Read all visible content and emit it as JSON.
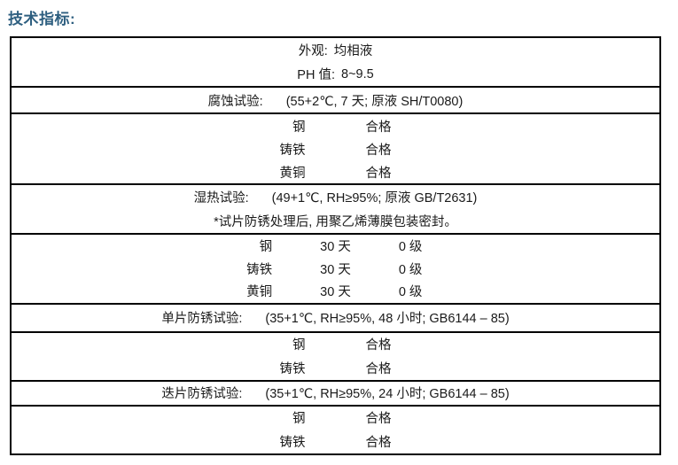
{
  "page": {
    "title": "技术指标:"
  },
  "colors": {
    "title": "#2E5F80",
    "border": "#000000",
    "text": "#1A1A1A",
    "background": "#FFFFFF"
  },
  "table": {
    "sections": [
      {
        "rows": [
          {
            "type": "pair",
            "cells": [
              "外观:",
              "均相液"
            ]
          },
          {
            "type": "pair",
            "cells": [
              "PH 值:",
              "8~9.5"
            ]
          }
        ]
      },
      {
        "rows": [
          {
            "type": "test",
            "cells": [
              "腐蚀试验:",
              "(55+2℃, 7 天; 原液 SH/T0080)"
            ]
          }
        ]
      },
      {
        "rows": [
          {
            "type": "metal2",
            "cells": [
              "钢",
              "合格"
            ]
          },
          {
            "type": "metal2",
            "cells": [
              "铸铁",
              "合格"
            ]
          },
          {
            "type": "metal2",
            "cells": [
              "黄铜",
              "合格"
            ]
          }
        ]
      },
      {
        "rows": [
          {
            "type": "test",
            "cells": [
              "湿热试验:",
              "(49+1℃, RH≥95%; 原液 GB/T2631)"
            ]
          },
          {
            "type": "note",
            "cells": [
              "*试片防锈处理后, 用聚乙烯薄膜包装密封。"
            ]
          }
        ]
      },
      {
        "rows": [
          {
            "type": "metal3",
            "cells": [
              "钢",
              "30 天",
              "0 级"
            ]
          },
          {
            "type": "metal3",
            "cells": [
              "铸铁",
              "30 天",
              "0 级"
            ]
          },
          {
            "type": "metal3",
            "cells": [
              "黄铜",
              "30 天",
              "0 级"
            ]
          }
        ]
      },
      {
        "rows": [
          {
            "type": "test",
            "cells": [
              "单片防锈试验:",
              "(35+1℃, RH≥95%, 48 小时; GB6144 – 85)"
            ]
          }
        ]
      },
      {
        "rows": [
          {
            "type": "metal2",
            "cells": [
              "钢",
              "合格"
            ]
          },
          {
            "type": "metal2",
            "cells": [
              "铸铁",
              "合格"
            ]
          }
        ]
      },
      {
        "rows": [
          {
            "type": "test",
            "cells": [
              "迭片防锈试验:",
              "(35+1℃, RH≥95%, 24 小时; GB6144 – 85)"
            ]
          }
        ]
      },
      {
        "rows": [
          {
            "type": "metal2",
            "cells": [
              "钢",
              "合格"
            ]
          },
          {
            "type": "metal2",
            "cells": [
              "铸铁",
              "合格"
            ]
          }
        ]
      }
    ]
  }
}
